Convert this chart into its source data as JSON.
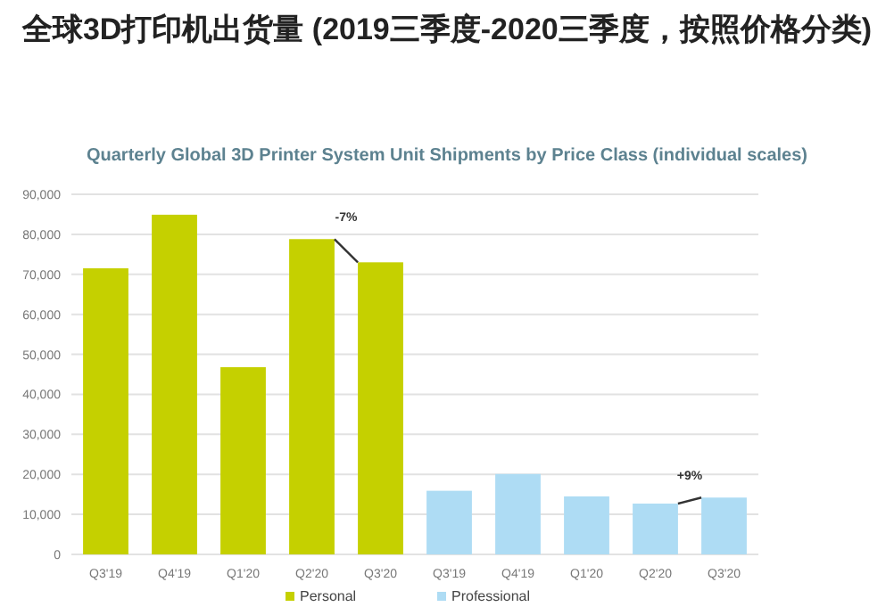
{
  "chart_data": {
    "type": "bar",
    "title": "全球3D打印机出货量 (2019三季度-2020三季度，按照价格分类)",
    "subtitle": "Quarterly Global 3D Printer System Unit Shipments by Price Class (individual scales)",
    "categories": [
      "Q3'19",
      "Q4'19",
      "Q1'20",
      "Q2'20",
      "Q3'20",
      "Q3'19",
      "Q4'19",
      "Q1'20",
      "Q2'20",
      "Q3'20"
    ],
    "series": [
      {
        "name": "Personal",
        "color": "#c5d000",
        "values": [
          71500,
          84900,
          46800,
          78800,
          73000,
          null,
          null,
          null,
          null,
          null
        ]
      },
      {
        "name": "Professional",
        "color": "#aedcf4",
        "values": [
          null,
          null,
          null,
          null,
          null,
          15900,
          20100,
          14500,
          12700,
          14200
        ]
      }
    ],
    "ylim": [
      0,
      90000
    ],
    "yticks": [
      0,
      {
        "value": 10000,
        "label": "10,000"
      },
      {
        "value": 20000,
        "label": "20,000"
      },
      {
        "value": 30000,
        "label": "30,000"
      },
      {
        "value": 40000,
        "label": "40,000"
      },
      {
        "value": 50000,
        "label": "50,000"
      },
      {
        "value": 60000,
        "label": "60,000"
      },
      {
        "value": 70000,
        "label": "70,000"
      },
      {
        "value": 80000,
        "label": "80,000"
      },
      {
        "value": 90000,
        "label": "90,000"
      }
    ],
    "grid": "y",
    "legend": "bottom",
    "annotations": [
      "-7%",
      "+9%"
    ]
  }
}
